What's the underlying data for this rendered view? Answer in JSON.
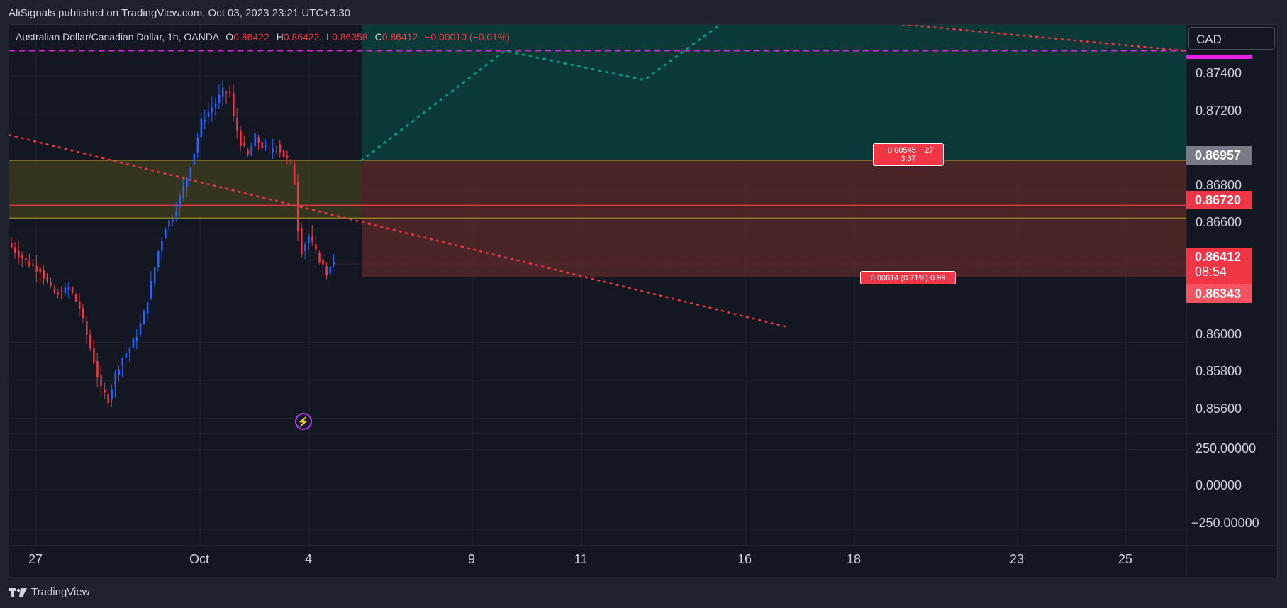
{
  "header": {
    "published": "AliSignals published on TradingView.com, Oct 03, 2023 23:21 UTC+3:30"
  },
  "legend": {
    "symbol": "Australian Dollar/Canadian Dollar, 1h, OANDA",
    "open_label": "O",
    "open": "0.86422",
    "high_label": "H",
    "high": "0.86422",
    "low_label": "L",
    "low": "0.86358",
    "close_label": "C",
    "close": "0.86412",
    "change": "−0.00010 (−0.01%)"
  },
  "currency": "CAD",
  "price_tags": {
    "upper": "0.86957",
    "entry": "0.86720",
    "last": "0.86412",
    "countdown": "08:54",
    "low": "0.86343"
  },
  "info_boxes": {
    "top_line1": "−0.00545 − 27",
    "top_line2": "3.37",
    "bottom": "0.00614 (0.71%) 0.99"
  },
  "footer": {
    "brand": "TradingView"
  },
  "colors": {
    "up": "#2962ff",
    "down": "#f23645",
    "target_zone": "#0b3d3a",
    "stop_zone": "#5c2b2b",
    "band": "#3b3a1e",
    "dotted_green": "#089981",
    "dotted_red": "#f23645",
    "accent": "#e91ee9"
  },
  "chart_data": {
    "type": "candlestick",
    "symbol": "AUDCAD",
    "timeframe": "1h",
    "y_axis_ticks": [
      "0.87400",
      "0.87200",
      "0.86800",
      "0.86600",
      "0.86000",
      "0.85800",
      "0.85600"
    ],
    "ylim": [
      0.8552,
      0.8767
    ],
    "x_axis_labels": [
      "27",
      "Oct",
      "4",
      "9",
      "11",
      "16",
      "18",
      "23",
      "25"
    ],
    "oscillator_ticks": [
      "250.00000",
      "0.00000",
      "−250.00000"
    ],
    "oscillator_ylim": [
      -350,
      350
    ],
    "levels": {
      "entry": 0.8672,
      "band_top": 0.86957,
      "band_bottom": 0.86654,
      "target_zone_top": 0.8767,
      "stop": 0.86343,
      "dashed_purple": 0.87533
    },
    "price_path": [
      {
        "t": 0,
        "p": 0.8652
      },
      {
        "t": 3,
        "p": 0.8646
      },
      {
        "t": 6,
        "p": 0.8641
      },
      {
        "t": 9,
        "p": 0.8638
      },
      {
        "t": 12,
        "p": 0.8628
      },
      {
        "t": 14,
        "p": 0.8624
      },
      {
        "t": 17,
        "p": 0.8629
      },
      {
        "t": 20,
        "p": 0.8618
      },
      {
        "t": 22,
        "p": 0.8604
      },
      {
        "t": 24,
        "p": 0.859
      },
      {
        "t": 26,
        "p": 0.8575
      },
      {
        "t": 28,
        "p": 0.857
      },
      {
        "t": 30,
        "p": 0.8583
      },
      {
        "t": 32,
        "p": 0.8592
      },
      {
        "t": 34,
        "p": 0.8597
      },
      {
        "t": 36,
        "p": 0.8604
      },
      {
        "t": 38,
        "p": 0.8615
      },
      {
        "t": 40,
        "p": 0.8631
      },
      {
        "t": 42,
        "p": 0.8648
      },
      {
        "t": 44,
        "p": 0.8661
      },
      {
        "t": 46,
        "p": 0.8666
      },
      {
        "t": 48,
        "p": 0.8676
      },
      {
        "t": 50,
        "p": 0.8687
      },
      {
        "t": 52,
        "p": 0.87
      },
      {
        "t": 54,
        "p": 0.8716
      },
      {
        "t": 56,
        "p": 0.8721
      },
      {
        "t": 58,
        "p": 0.8726
      },
      {
        "t": 60,
        "p": 0.8732
      },
      {
        "t": 62,
        "p": 0.8731
      },
      {
        "t": 63,
        "p": 0.8718
      },
      {
        "t": 65,
        "p": 0.8705
      },
      {
        "t": 67,
        "p": 0.8698
      },
      {
        "t": 69,
        "p": 0.8708
      },
      {
        "t": 71,
        "p": 0.8703
      },
      {
        "t": 73,
        "p": 0.87
      },
      {
        "t": 75,
        "p": 0.8704
      },
      {
        "t": 77,
        "p": 0.8698
      },
      {
        "t": 79,
        "p": 0.8694
      },
      {
        "t": 80,
        "p": 0.8684
      },
      {
        "t": 81,
        "p": 0.866
      },
      {
        "t": 82,
        "p": 0.8648
      },
      {
        "t": 84,
        "p": 0.8656
      },
      {
        "t": 86,
        "p": 0.8647
      },
      {
        "t": 88,
        "p": 0.864
      },
      {
        "t": 89,
        "p": 0.8636
      },
      {
        "t": 90,
        "p": 0.8641
      }
    ]
  }
}
